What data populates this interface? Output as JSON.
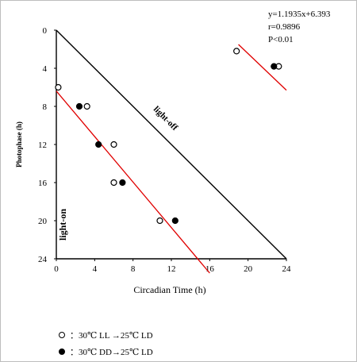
{
  "chart_data": {
    "type": "scatter",
    "x_label": "Circadian Time (h)",
    "y_label": "Photophase (h)",
    "x_ticks": [
      "0",
      "4",
      "8",
      "12",
      "16",
      "20",
      "24"
    ],
    "y_ticks": [
      "0",
      "4",
      "8",
      "12",
      "16",
      "20",
      "24"
    ],
    "xlim": [
      0,
      24
    ],
    "ylim": [
      24,
      0
    ],
    "regression_text": {
      "equation": "y=1.1935x+6.393",
      "r": "r=0.9896",
      "p": "P<0.01"
    },
    "annotations": {
      "light_off": "light-off",
      "light_on": "light-on"
    },
    "series": [
      {
        "name": "open",
        "marker": "open-circle",
        "points": [
          [
            0.2,
            6.0
          ],
          [
            3.2,
            8.0
          ],
          [
            6.0,
            12.0
          ],
          [
            6.0,
            16.0
          ],
          [
            10.8,
            20.0
          ],
          [
            18.8,
            2.2
          ],
          [
            23.2,
            3.8
          ]
        ]
      },
      {
        "name": "filled",
        "marker": "filled-circle",
        "points": [
          [
            2.4,
            8.0
          ],
          [
            4.4,
            12.0
          ],
          [
            6.9,
            16.0
          ],
          [
            12.4,
            20.0
          ],
          [
            22.7,
            3.8
          ]
        ]
      }
    ],
    "lines": [
      {
        "name": "light-off-boundary",
        "color": "#000000",
        "points": [
          [
            0,
            0
          ],
          [
            24,
            24
          ]
        ]
      },
      {
        "name": "regression-main",
        "color": "#e00000",
        "points": [
          [
            0,
            6.393
          ],
          [
            16.0,
            25.5
          ]
        ]
      },
      {
        "name": "regression-upper",
        "color": "#e00000",
        "points": [
          [
            19.0,
            1.5
          ],
          [
            24.0,
            6.3
          ]
        ]
      }
    ],
    "legend": [
      {
        "marker": "open-circle",
        "text": "：30℃ LL →25℃ LD"
      },
      {
        "marker": "filled-circle",
        "text": "：30℃ DD→25℃ LD"
      }
    ]
  }
}
